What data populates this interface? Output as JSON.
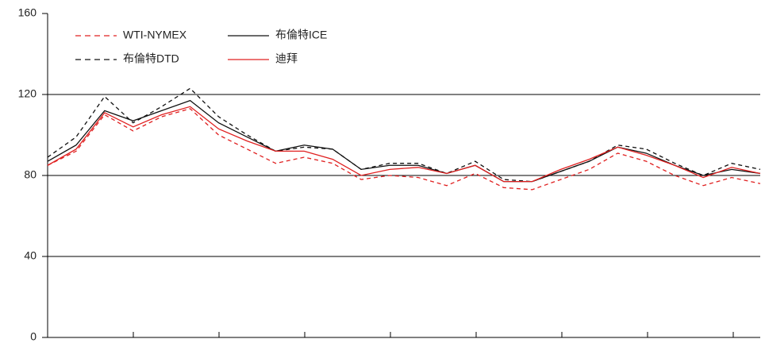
{
  "chart_data": {
    "type": "line",
    "categories": [
      null,
      null,
      null,
      null,
      null,
      null,
      null,
      null,
      null,
      null,
      null,
      null,
      null,
      null,
      null,
      null,
      null,
      null,
      null,
      null,
      null,
      null,
      null,
      null,
      null,
      null
    ],
    "ylim": [
      0,
      160
    ],
    "yticks": [
      0,
      40,
      80,
      120,
      160
    ],
    "grid": true,
    "series": [
      {
        "name": "WTI-NYMEX",
        "color": "#e02020",
        "dash": true,
        "values": [
          85,
          92,
          110,
          102,
          109,
          113,
          100,
          93,
          86,
          89,
          86,
          78,
          80,
          79,
          75,
          81,
          74,
          73,
          78,
          83,
          91,
          87,
          80,
          75,
          79,
          76
        ]
      },
      {
        "name": "布倫特ICE",
        "color": "#111111",
        "dash": false,
        "values": [
          87,
          95,
          112,
          107,
          112,
          117,
          106,
          99,
          92,
          95,
          93,
          83,
          85,
          85,
          81,
          85,
          77,
          77,
          82,
          87,
          94,
          91,
          85,
          80,
          83,
          81
        ]
      },
      {
        "name": "布倫特DTD",
        "color": "#111111",
        "dash": true,
        "values": [
          89,
          99,
          119,
          106,
          114,
          123,
          109,
          100,
          92,
          94,
          93,
          83,
          86,
          86,
          81,
          87,
          78,
          77,
          82,
          87,
          95,
          93,
          86,
          80,
          86,
          83
        ]
      },
      {
        "name": "迪拜",
        "color": "#e02020",
        "dash": false,
        "values": [
          85,
          93,
          111,
          104,
          110,
          114,
          103,
          97,
          92,
          92,
          88,
          80,
          83,
          84,
          81,
          85,
          77,
          77,
          83,
          88,
          94,
          90,
          85,
          79,
          84,
          81
        ]
      }
    ]
  }
}
